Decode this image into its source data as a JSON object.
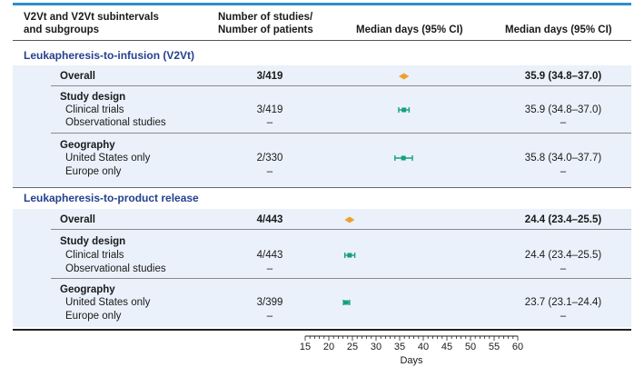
{
  "header": {
    "col1_line1": "V2Vt and V2Vt subintervals",
    "col1_line2": "and subgroups",
    "col2_line1": "Number of studies/",
    "col2_line2": "Number of patients",
    "col3": "Median days (95% CI)",
    "col4": "Median days (95% CI)"
  },
  "sections": [
    {
      "title": "Leukapheresis-to-infusion (V2Vt)",
      "overall": {
        "label": "Overall",
        "n": "3/419",
        "ci_text": "35.9 (34.8–37.0)"
      },
      "study_design": {
        "label": "Study design",
        "rows": [
          {
            "label": "Clinical trials",
            "n": "3/419",
            "ci_text": "35.9 (34.8–37.0)"
          },
          {
            "label": "Observational studies",
            "n": "–",
            "ci_text": "–"
          }
        ]
      },
      "geography": {
        "label": "Geography",
        "rows": [
          {
            "label": "United States only",
            "n": "2/330",
            "ci_text": "35.8 (34.0–37.7)"
          },
          {
            "label": "Europe only",
            "n": "–",
            "ci_text": "–"
          }
        ]
      }
    },
    {
      "title": "Leukapheresis-to-product release",
      "overall": {
        "label": "Overall",
        "n": "4/443",
        "ci_text": "24.4 (23.4–25.5)"
      },
      "study_design": {
        "label": "Study design",
        "rows": [
          {
            "label": "Clinical trials",
            "n": "4/443",
            "ci_text": "24.4 (23.4–25.5)"
          },
          {
            "label": "Observational studies",
            "n": "–",
            "ci_text": "–"
          }
        ]
      },
      "geography": {
        "label": "Geography",
        "rows": [
          {
            "label": "United States only",
            "n": "3/399",
            "ci_text": "23.7 (23.1–24.4)"
          },
          {
            "label": "Europe only",
            "n": "–",
            "ci_text": "–"
          }
        ]
      }
    }
  ],
  "colors": {
    "overall": "#f0a030",
    "subgroup": "#16a07a",
    "section_title": "#24418f",
    "band": "#eaf1fa",
    "top_rule": "#2e8fc9"
  },
  "chart_data": {
    "type": "forest",
    "xlabel": "Days",
    "xlim": [
      15,
      60
    ],
    "xticks": [
      15,
      20,
      25,
      30,
      35,
      40,
      45,
      50,
      55,
      60
    ],
    "points": [
      {
        "group": "Leukapheresis-to-infusion (V2Vt)",
        "label": "Overall",
        "median": 35.9,
        "low": 34.8,
        "high": 37.0,
        "kind": "overall"
      },
      {
        "group": "Leukapheresis-to-infusion (V2Vt)",
        "label": "Clinical trials",
        "median": 35.9,
        "low": 34.8,
        "high": 37.0,
        "kind": "subgroup"
      },
      {
        "group": "Leukapheresis-to-infusion (V2Vt)",
        "label": "United States only",
        "median": 35.8,
        "low": 34.0,
        "high": 37.7,
        "kind": "subgroup"
      },
      {
        "group": "Leukapheresis-to-product release",
        "label": "Overall",
        "median": 24.4,
        "low": 23.4,
        "high": 25.5,
        "kind": "overall"
      },
      {
        "group": "Leukapheresis-to-product release",
        "label": "Clinical trials",
        "median": 24.4,
        "low": 23.4,
        "high": 25.5,
        "kind": "subgroup"
      },
      {
        "group": "Leukapheresis-to-product release",
        "label": "United States only",
        "median": 23.7,
        "low": 23.1,
        "high": 24.4,
        "kind": "subgroup"
      }
    ]
  }
}
